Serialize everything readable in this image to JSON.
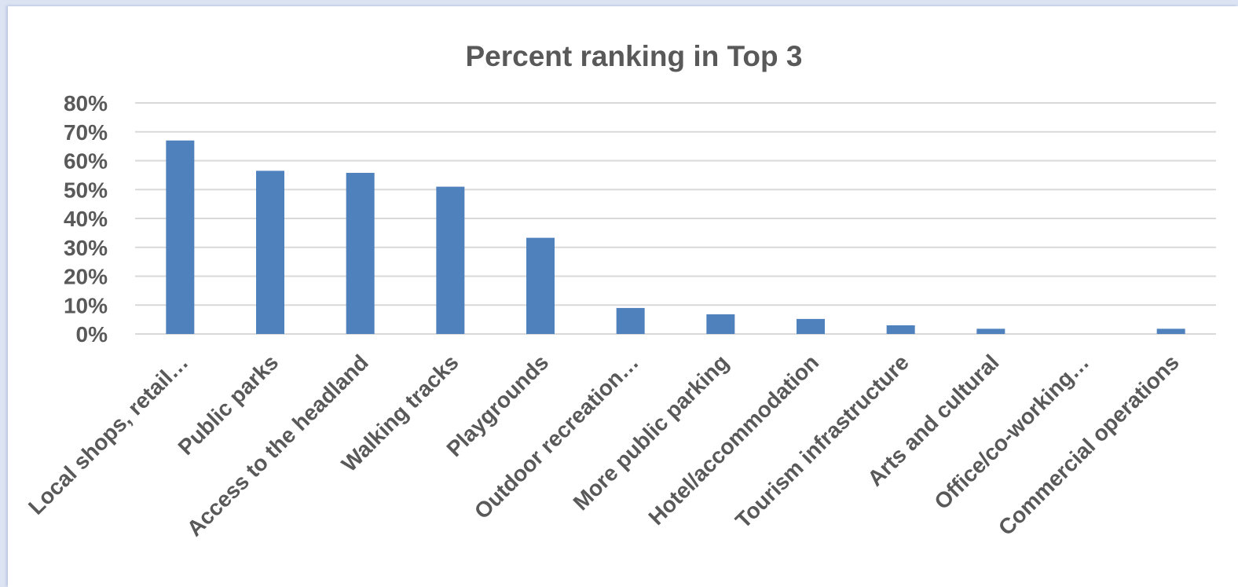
{
  "chart_data": {
    "type": "bar",
    "title": "Percent ranking in Top 3",
    "xlabel": "",
    "ylabel": "",
    "categories": [
      "Local shops, retail…",
      "Public parks",
      "Access to the headland",
      "Walking tracks",
      "Playgrounds",
      "Outdoor recreation…",
      "More public parking",
      "Hotel/accommodation",
      "Tourism infrastructure",
      "Arts and cultural",
      "Office/co-working…",
      "Commercial operations"
    ],
    "values": [
      67,
      56.5,
      55.8,
      51,
      33.3,
      9,
      6.8,
      5.2,
      3,
      1.8,
      0,
      1.8
    ],
    "ylim": [
      0,
      80
    ],
    "yticks": [
      "0%",
      "10%",
      "20%",
      "30%",
      "40%",
      "50%",
      "60%",
      "70%",
      "80%"
    ],
    "grid": true,
    "legend": "none",
    "bar_color": "#4f81bd"
  }
}
